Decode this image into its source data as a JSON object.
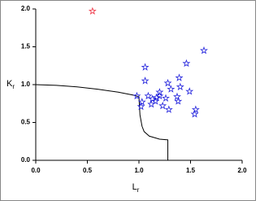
{
  "chart_data": {
    "type": "scatter",
    "xlabel": {
      "main": "L",
      "sub": "r"
    },
    "ylabel": {
      "main": "K",
      "sub": "r"
    },
    "xlim": [
      0,
      2
    ],
    "ylim": [
      0,
      2
    ],
    "xticks": [
      {
        "value": 0,
        "label": "0.0"
      },
      {
        "value": 0.5,
        "label": "0.5"
      },
      {
        "value": 1,
        "label": "1.0"
      },
      {
        "value": 1.5,
        "label": "1.5"
      },
      {
        "value": 2,
        "label": "2.0"
      }
    ],
    "yticks": [
      {
        "value": 0,
        "label": "0.0"
      },
      {
        "value": 0.5,
        "label": "0.5"
      },
      {
        "value": 1,
        "label": "1.0"
      },
      {
        "value": 1.5,
        "label": "1.5"
      },
      {
        "value": 2,
        "label": "2.0"
      }
    ],
    "series": [
      {
        "mode": "line",
        "color": "#000000",
        "x": [
          0,
          0.2,
          0.4,
          0.6,
          0.8,
          0.95,
          1.0,
          1.01,
          1.03,
          1.05,
          1.1,
          1.2,
          1.28,
          1.28
        ],
        "y": [
          1.0,
          0.99,
          0.97,
          0.94,
          0.9,
          0.86,
          0.84,
          0.6,
          0.45,
          0.38,
          0.32,
          0.28,
          0.27,
          0
        ]
      },
      {
        "mode": "marker",
        "color": "#2222dd",
        "x": [
          1.06,
          1.06,
          0.98,
          1.03,
          1.02,
          1.09,
          1.13,
          1.16,
          1.17,
          1.2,
          1.2,
          1.12,
          1.23,
          1.28,
          1.31,
          1.26,
          1.29,
          1.37,
          1.38,
          1.4,
          1.39,
          1.46,
          1.49,
          1.54,
          1.55,
          1.63
        ],
        "y": [
          1.23,
          1.05,
          0.85,
          0.77,
          0.71,
          0.85,
          0.81,
          0.78,
          0.83,
          0.85,
          0.9,
          0.74,
          0.72,
          1.02,
          0.94,
          0.82,
          0.67,
          0.84,
          0.78,
          0.97,
          1.09,
          1.28,
          0.91,
          0.61,
          0.67,
          1.45
        ]
      },
      {
        "mode": "marker",
        "color": "#ee3344",
        "x": [
          0.55
        ],
        "y": [
          1.97
        ]
      }
    ]
  }
}
